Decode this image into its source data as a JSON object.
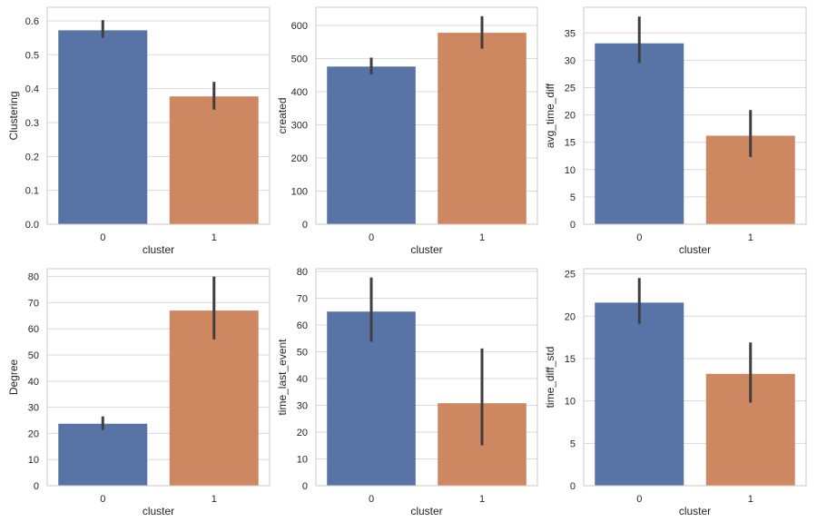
{
  "colors": {
    "cluster_0": "#5874a6",
    "cluster_1": "#cd8862",
    "error_bar": "#3f3f3f",
    "grid": "#d9d9d9",
    "frame": "#c9c9c9"
  },
  "chart_data": [
    {
      "type": "bar",
      "title": "",
      "xlabel": "cluster",
      "ylabel": "Clustering",
      "categories": [
        "0",
        "1"
      ],
      "values": [
        0.572,
        0.377
      ],
      "error_bars": [
        [
          0.55,
          0.602
        ],
        [
          0.338,
          0.42
        ]
      ],
      "ylim": [
        0,
        0.64
      ],
      "yticks": [
        "0.0",
        "0.1",
        "0.2",
        "0.3",
        "0.4",
        "0.5",
        "0.6"
      ],
      "grid": true
    },
    {
      "type": "bar",
      "title": "",
      "xlabel": "cluster",
      "ylabel": "created",
      "categories": [
        "0",
        "1"
      ],
      "values": [
        476,
        578
      ],
      "error_bars": [
        [
          452,
          503
        ],
        [
          530,
          628
        ]
      ],
      "ylim": [
        0,
        655
      ],
      "yticks": [
        "0",
        "100",
        "200",
        "300",
        "400",
        "500",
        "600"
      ],
      "grid": true
    },
    {
      "type": "bar",
      "title": "",
      "xlabel": "cluster",
      "ylabel": "avg_time_diff",
      "categories": [
        "0",
        "1"
      ],
      "values": [
        33.1,
        16.2
      ],
      "error_bars": [
        [
          29.5,
          38.0
        ],
        [
          12.3,
          20.9
        ]
      ],
      "ylim": [
        0,
        39.7
      ],
      "yticks": [
        "0",
        "5",
        "10",
        "15",
        "20",
        "25",
        "30",
        "35"
      ],
      "grid": true
    },
    {
      "type": "bar",
      "title": "",
      "xlabel": "cluster",
      "ylabel": "Degree",
      "categories": [
        "0",
        "1"
      ],
      "values": [
        23.7,
        67.0
      ],
      "error_bars": [
        [
          21.3,
          26.5
        ],
        [
          56.0,
          80.0
        ]
      ],
      "ylim": [
        0,
        83
      ],
      "yticks": [
        "0",
        "10",
        "20",
        "30",
        "40",
        "50",
        "60",
        "70",
        "80"
      ],
      "grid": true
    },
    {
      "type": "bar",
      "title": "",
      "xlabel": "cluster",
      "ylabel": "time_last_event",
      "categories": [
        "0",
        "1"
      ],
      "values": [
        65.0,
        30.8
      ],
      "error_bars": [
        [
          53.7,
          77.7
        ],
        [
          15.1,
          51.2
        ]
      ],
      "ylim": [
        0,
        81
      ],
      "yticks": [
        "0",
        "10",
        "20",
        "30",
        "40",
        "50",
        "60",
        "70",
        "80"
      ],
      "grid": true
    },
    {
      "type": "bar",
      "title": "",
      "xlabel": "cluster",
      "ylabel": "time_diff_std",
      "categories": [
        "0",
        "1"
      ],
      "values": [
        21.6,
        13.2
      ],
      "error_bars": [
        [
          19.1,
          24.5
        ],
        [
          9.8,
          16.9
        ]
      ],
      "ylim": [
        0,
        25.6
      ],
      "yticks": [
        "0",
        "5",
        "10",
        "15",
        "20",
        "25"
      ],
      "grid": true
    }
  ]
}
